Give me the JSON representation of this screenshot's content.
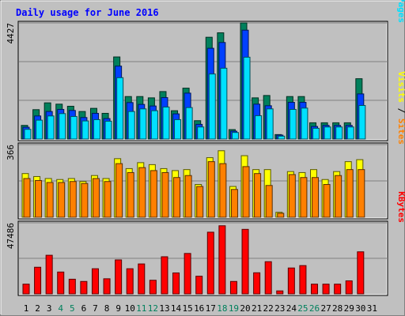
{
  "chart_data": {
    "type": "bar",
    "title": "Daily usage for June 2016",
    "categories": [
      "1",
      "2",
      "3",
      "4",
      "5",
      "6",
      "7",
      "8",
      "9",
      "10",
      "11",
      "12",
      "13",
      "14",
      "15",
      "16",
      "17",
      "18",
      "19",
      "20",
      "21",
      "22",
      "23",
      "24",
      "25",
      "26",
      "27",
      "28",
      "29",
      "30",
      "31"
    ],
    "weekend_days": [
      "4",
      "5",
      "11",
      "12",
      "18",
      "19",
      "25",
      "26"
    ],
    "panels": [
      {
        "id": "hits-files-pages",
        "ymax_label": "4427",
        "ylim": [
          0,
          4427
        ],
        "legend": [
          {
            "text": "Pages",
            "color": "#00e0ff"
          },
          {
            "text": " / ",
            "color": "#000000"
          },
          {
            "text": "Files",
            "color": "#0040ff"
          },
          {
            "text": " / ",
            "color": "#000000"
          },
          {
            "text": "Hits",
            "color": "#00805c"
          }
        ],
        "series": [
          {
            "name": "Hits",
            "color": "#00805c",
            "values": [
              520,
              1120,
              1380,
              1330,
              1250,
              1050,
              1170,
              980,
              3130,
              1620,
              1620,
              1570,
              1810,
              1080,
              1940,
              700,
              3880,
              4050,
              360,
              4427,
              1570,
              1660,
              170,
              1620,
              1620,
              620,
              620,
              620,
              620,
              2300,
              0
            ]
          },
          {
            "name": "Files",
            "color": "#0040ff",
            "values": [
              450,
              880,
              1050,
              1130,
              1090,
              820,
              980,
              780,
              2780,
              1390,
              1320,
              1260,
              1580,
              960,
              1750,
              560,
              3460,
              3680,
              300,
              4150,
              1330,
              1270,
              150,
              1400,
              1400,
              480,
              520,
              520,
              520,
              1720,
              0
            ]
          },
          {
            "name": "Pages",
            "color": "#00e0ff",
            "values": [
              370,
              720,
              880,
              970,
              860,
              690,
              740,
              680,
              2340,
              1050,
              1150,
              1080,
              1220,
              740,
              1200,
              460,
              2480,
              2700,
              250,
              3120,
              890,
              1150,
              110,
              1130,
              1180,
              410,
              460,
              460,
              460,
              1280,
              0
            ]
          }
        ]
      },
      {
        "id": "visits-sites",
        "ymax_label": "366",
        "ylim": [
          0,
          366
        ],
        "legend": [
          {
            "text": "Sites",
            "color": "#ff8000"
          },
          {
            "text": " / ",
            "color": "#000000"
          },
          {
            "text": "Visits",
            "color": "#ffff00"
          }
        ],
        "series": [
          {
            "name": "Visits",
            "color": "#ffff00",
            "values": [
              220,
              205,
              195,
              190,
              195,
              180,
              210,
              195,
              295,
              245,
              275,
              265,
              245,
              235,
              240,
              165,
              300,
              335,
              155,
              310,
              240,
              240,
              25,
              230,
              225,
              240,
              190,
              230,
              280,
              290,
              0
            ]
          },
          {
            "name": "Sites",
            "color": "#ff8000",
            "values": [
              195,
              185,
              175,
              175,
              180,
              170,
              195,
              180,
              270,
              225,
              250,
              235,
              225,
              200,
              210,
              155,
              280,
              270,
              140,
              255,
              220,
              160,
              20,
              215,
              200,
              200,
              165,
              210,
              240,
              240,
              0
            ]
          }
        ]
      },
      {
        "id": "kbytes",
        "ymax_label": "47486",
        "ylim": [
          0,
          47486
        ],
        "legend": [
          {
            "text": "KBytes",
            "color": "#ff0000"
          }
        ],
        "series": [
          {
            "name": "KBytes",
            "color": "#ff0000",
            "values": [
              6500,
              17800,
              25800,
              14600,
              9800,
              8300,
              16800,
              10100,
              22700,
              16800,
              20000,
              9100,
              24800,
              14000,
              27000,
              11800,
              41200,
              45500,
              8300,
              43100,
              14100,
              21500,
              2000,
              17300,
              18900,
              6500,
              6500,
              6500,
              8700,
              28100,
              0
            ]
          }
        ]
      }
    ]
  },
  "colors": {
    "frame_background": "#c0c0c0",
    "panel_background": "#c0c0c0",
    "title_color": "#0000ff",
    "gridline_color": "#808080",
    "weekday_label_color": "#000000",
    "weekend_label_color": "#00805c"
  }
}
